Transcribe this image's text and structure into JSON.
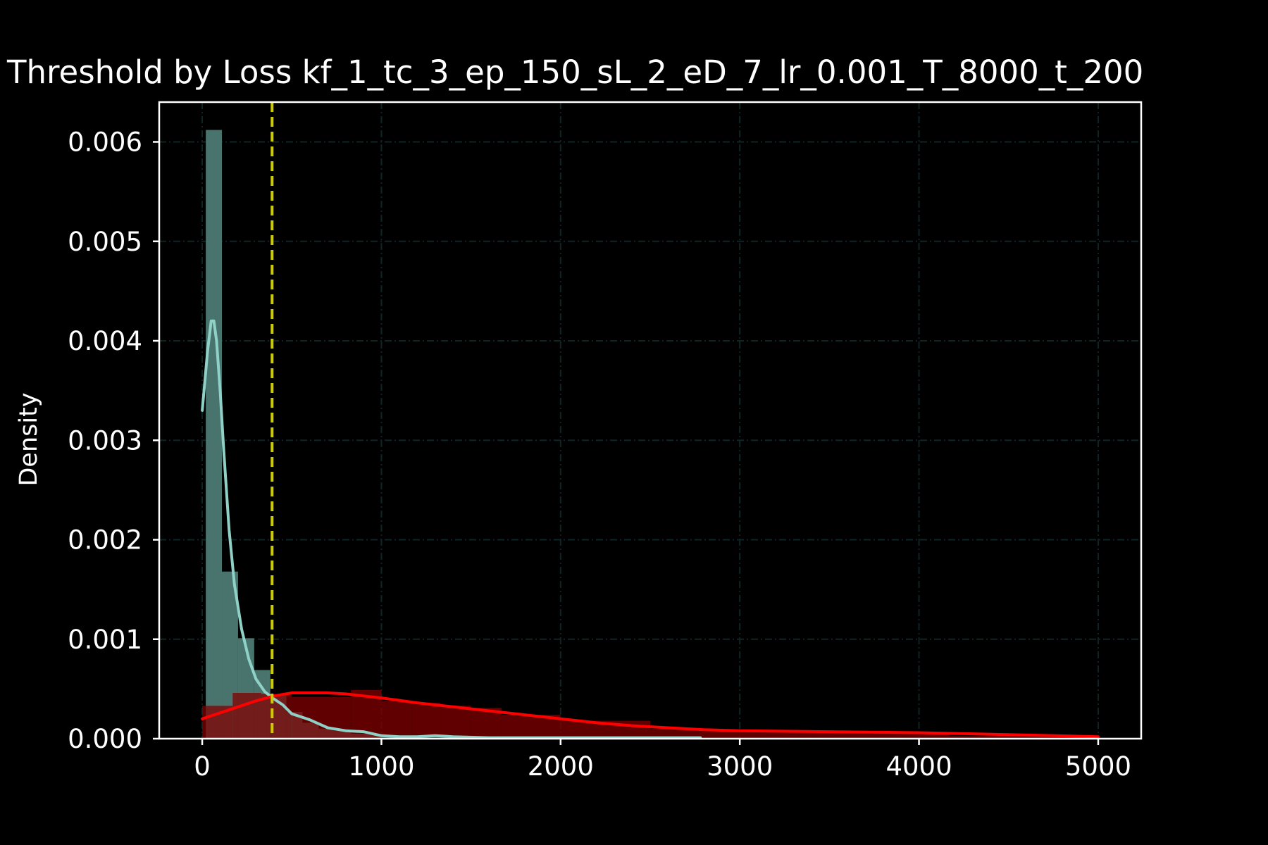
{
  "chart_data": {
    "type": "histogram",
    "title": "Threshold by Loss kf_1_tc_3_ep_150_sL_2_eD_7_lr_0.001_T_8000_t_200",
    "xlabel": "",
    "ylabel": "Density",
    "xlim": [
      -240,
      5240
    ],
    "ylim": [
      0,
      0.0064
    ],
    "x_ticks": [
      0,
      1000,
      2000,
      3000,
      4000,
      5000
    ],
    "x_tick_labels": [
      "0",
      "1000",
      "2000",
      "3000",
      "4000",
      "5000"
    ],
    "y_ticks": [
      0,
      0.001,
      0.002,
      0.003,
      0.004,
      0.005,
      0.006
    ],
    "y_tick_labels": [
      "0.000",
      "0.001",
      "0.002",
      "0.003",
      "0.004",
      "0.005",
      "0.006"
    ],
    "grid": true,
    "background": "#000000",
    "threshold": {
      "x": 390,
      "color": "#cccc00",
      "style": "dashed"
    },
    "series": [
      {
        "color_fill": "#4d7a73",
        "color_line": "#8fd1c6",
        "bins": [
          {
            "x0": 20,
            "x1": 110,
            "y": 0.00612
          },
          {
            "x0": 110,
            "x1": 200,
            "y": 0.00168
          },
          {
            "x0": 200,
            "x1": 290,
            "y": 0.00101
          },
          {
            "x0": 290,
            "x1": 380,
            "y": 0.00069
          },
          {
            "x0": 380,
            "x1": 470,
            "y": 0.00044
          },
          {
            "x0": 470,
            "x1": 560,
            "y": 0.00027
          },
          {
            "x0": 560,
            "x1": 650,
            "y": 0.00016
          },
          {
            "x0": 650,
            "x1": 740,
            "y": 0.0001
          },
          {
            "x0": 740,
            "x1": 830,
            "y": 8e-05
          },
          {
            "x0": 830,
            "x1": 1000,
            "y": 5e-05
          },
          {
            "x0": 1000,
            "x1": 1500,
            "y": 2e-05
          },
          {
            "x0": 1500,
            "x1": 2780,
            "y": 1e-05
          }
        ],
        "kde": {
          "x": [
            0,
            30,
            50,
            65,
            80,
            100,
            120,
            150,
            180,
            220,
            260,
            300,
            350,
            400,
            450,
            500,
            550,
            600,
            650,
            700,
            800,
            900,
            1000,
            1100,
            1200,
            1300,
            1400,
            1600,
            2000,
            2780
          ],
          "y": [
            0.0033,
            0.0039,
            0.0042,
            0.0042,
            0.004,
            0.0035,
            0.0029,
            0.0021,
            0.00155,
            0.0011,
            0.0008,
            0.0006,
            0.00047,
            0.0004,
            0.00034,
            0.00025,
            0.00022,
            0.00019,
            0.00015,
            0.00011,
            8e-05,
            7e-05,
            3e-05,
            2e-05,
            2e-05,
            3e-05,
            2e-05,
            1e-05,
            1e-05,
            1e-05
          ]
        }
      },
      {
        "color_fill": "#800000",
        "color_line": "#ff0000",
        "bins": [
          {
            "x0": 0,
            "x1": 170,
            "y": 0.00033
          },
          {
            "x0": 170,
            "x1": 330,
            "y": 0.00046
          },
          {
            "x0": 330,
            "x1": 500,
            "y": 0.00045
          },
          {
            "x0": 500,
            "x1": 830,
            "y": 0.00042
          },
          {
            "x0": 830,
            "x1": 1000,
            "y": 0.00049
          },
          {
            "x0": 1000,
            "x1": 1170,
            "y": 0.00038
          },
          {
            "x0": 1170,
            "x1": 1330,
            "y": 0.00036
          },
          {
            "x0": 1330,
            "x1": 1500,
            "y": 0.00033
          },
          {
            "x0": 1500,
            "x1": 1670,
            "y": 0.00031
          },
          {
            "x0": 1670,
            "x1": 2000,
            "y": 0.00024
          },
          {
            "x0": 2000,
            "x1": 2500,
            "y": 0.00018
          },
          {
            "x0": 2500,
            "x1": 2800,
            "y": 0.0001
          },
          {
            "x0": 2800,
            "x1": 3330,
            "y": 8e-05
          },
          {
            "x0": 3330,
            "x1": 4170,
            "y": 6e-05
          },
          {
            "x0": 4170,
            "x1": 5000,
            "y": 3e-05
          }
        ],
        "kde": {
          "x": [
            0,
            100,
            200,
            300,
            400,
            500,
            600,
            700,
            800,
            900,
            1000,
            1200,
            1400,
            1600,
            1800,
            2000,
            2200,
            2400,
            2600,
            2800,
            3000,
            3500,
            4000,
            4500,
            5000
          ],
          "y": [
            0.0002,
            0.00026,
            0.00032,
            0.00038,
            0.00043,
            0.00046,
            0.00046,
            0.00046,
            0.00045,
            0.00043,
            0.00041,
            0.00036,
            0.00032,
            0.00028,
            0.00024,
            0.0002,
            0.00016,
            0.00013,
            0.00011,
            9e-05,
            8e-05,
            7e-05,
            6e-05,
            4e-05,
            2e-05
          ]
        }
      }
    ]
  }
}
